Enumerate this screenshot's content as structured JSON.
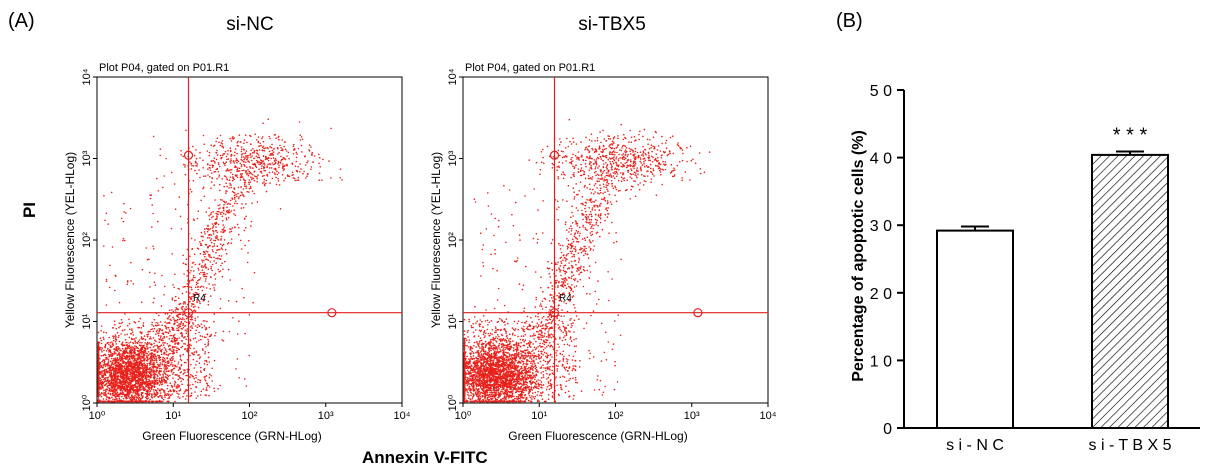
{
  "panels": {
    "a": "(A)",
    "b": "(B)"
  },
  "flow": {
    "shared_ylabel": "PI",
    "shared_xlabel": "Annexin V-FITC",
    "point_color": "#e8201a",
    "gate_color": "#e02020",
    "plots": [
      {
        "title": "si-NC",
        "subtitle": "Plot P04, gated on P01.R1",
        "xlabel": "Green Fluorescence (GRN-HLog)",
        "ylabel": "Yellow Fluorescence (YEL-HLog)",
        "region": "R4",
        "x_ticks": [
          "10⁰",
          "10¹",
          "10²",
          "10³",
          "10⁴"
        ],
        "y_ticks": [
          "10⁰",
          "10¹",
          "10²",
          "10³",
          "10⁴"
        ]
      },
      {
        "title": "si-TBX5",
        "subtitle": "Plot P04, gated on P01.R1",
        "xlabel": "Green Fluorescence (GRN-HLog)",
        "ylabel": "Yellow Fluorescence (YEL-HLog)",
        "region": "R4",
        "x_ticks": [
          "10⁰",
          "10¹",
          "10²",
          "10³",
          "10⁴"
        ],
        "y_ticks": [
          "10⁰",
          "10¹",
          "10²",
          "10³",
          "10⁴"
        ]
      }
    ]
  },
  "chart_data": {
    "type": "bar",
    "categories": [
      "si-NC",
      "si-TBX5"
    ],
    "tick_labels": [
      "s i - N C",
      "s i - T B X 5"
    ],
    "values": [
      29.2,
      40.4
    ],
    "errors": [
      0.6,
      0.5
    ],
    "fills": [
      "white",
      "hatched"
    ],
    "significance": [
      "",
      "* * *"
    ],
    "ylabel": "Percentage of apoptotic cells (%)",
    "xlabel": "",
    "ylim": [
      0,
      50
    ],
    "yticks": [
      0,
      10,
      20,
      30,
      40,
      50
    ],
    "ytick_labels": [
      "0",
      "1 0",
      "2 0",
      "3 0",
      "4 0",
      "5 0"
    ]
  }
}
